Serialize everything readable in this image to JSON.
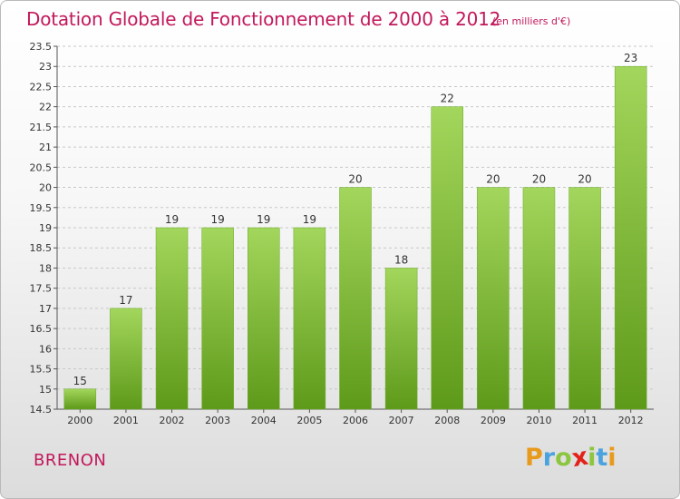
{
  "chart_data": {
    "type": "bar",
    "title": "Dotation Globale de Fonctionnement de 2000 à 2012",
    "unit": "(en milliers d'€)",
    "categories": [
      "2000",
      "2001",
      "2002",
      "2003",
      "2004",
      "2005",
      "2006",
      "2007",
      "2008",
      "2009",
      "2010",
      "2011",
      "2012"
    ],
    "values": [
      15,
      17,
      19,
      19,
      19,
      19,
      20,
      18,
      22,
      20,
      20,
      20,
      23
    ],
    "ylim": [
      14.5,
      23.5
    ],
    "yticks": [
      "14.5",
      "15",
      "15.5",
      "16",
      "16.5",
      "17",
      "17.5",
      "18",
      "18.5",
      "19",
      "19.5",
      "20",
      "20.5",
      "21",
      "21.5",
      "22",
      "22.5",
      "23",
      "23.5"
    ],
    "grid": true,
    "bar_color": "#7ab830"
  },
  "commune": "BRENON",
  "logo": {
    "letters": [
      {
        "ch": "P",
        "color": "#e89a1d"
      },
      {
        "ch": "r",
        "color": "#4aa3df"
      },
      {
        "ch": "o",
        "color": "#8cc63f"
      },
      {
        "ch": "x",
        "color": "#e2231a"
      },
      {
        "ch": "i",
        "color": "#8cc63f"
      },
      {
        "ch": "t",
        "color": "#4aa3df"
      },
      {
        "ch": "i",
        "color": "#e89a1d"
      }
    ]
  }
}
